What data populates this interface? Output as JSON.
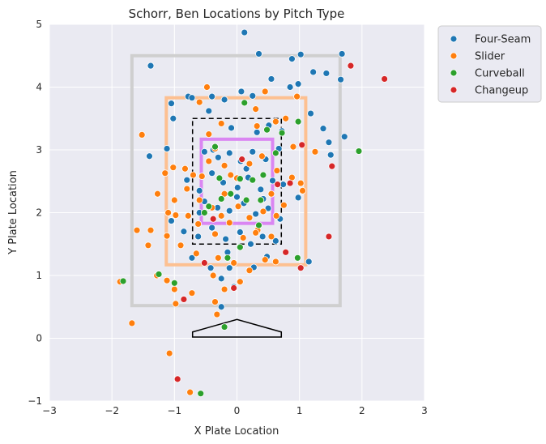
{
  "chart_data": {
    "type": "scatter",
    "title": "Schorr, Ben Locations by Pitch Type",
    "xlabel": "X Plate Location",
    "ylabel": "Y Plate Location",
    "xlim": [
      -3,
      3
    ],
    "ylim": [
      -1,
      5
    ],
    "xticks": [
      "−3",
      "−2",
      "−1",
      "0",
      "1",
      "2",
      "3"
    ],
    "yticks": [
      "−1",
      "0",
      "1",
      "2",
      "3",
      "4",
      "5"
    ],
    "grid": true,
    "legend_position": "outside-top-right",
    "zones": [
      {
        "name": "outer-zone",
        "color": "#cfcfcf",
        "x0": -1.68,
        "x1": 1.65,
        "y0": 0.52,
        "y1": 4.5,
        "style": "solid"
      },
      {
        "name": "slider-zone",
        "color": "#fdc091",
        "x0": -1.13,
        "x1": 1.1,
        "y0": 1.17,
        "y1": 3.83,
        "style": "solid"
      },
      {
        "name": "strike-zone",
        "color": "#000000",
        "x0": -0.71,
        "x1": 0.71,
        "y0": 1.5,
        "y1": 3.5,
        "style": "dashed"
      },
      {
        "name": "heart-zone",
        "color": "#da86f2",
        "x0": -0.57,
        "x1": 0.57,
        "y0": 1.83,
        "y1": 3.17,
        "style": "solid"
      }
    ],
    "home_plate": {
      "x": [
        -0.71,
        -0.71,
        0,
        0.71,
        0.71
      ],
      "y": [
        0.02,
        0.1,
        0.3,
        0.1,
        0.02
      ]
    },
    "series": [
      {
        "name": "Four-Seam",
        "color": "#1f77b4",
        "points": [
          [
            0.12,
            4.87
          ],
          [
            0.35,
            4.53
          ],
          [
            0.88,
            4.45
          ],
          [
            1.02,
            4.52
          ],
          [
            1.22,
            4.24
          ],
          [
            1.43,
            4.22
          ],
          [
            1.68,
            4.53
          ],
          [
            1.66,
            4.12
          ],
          [
            1.72,
            3.21
          ],
          [
            -1.38,
            4.34
          ],
          [
            -1.05,
            3.74
          ],
          [
            -0.78,
            3.85
          ],
          [
            -0.72,
            3.83
          ],
          [
            -0.4,
            3.85
          ],
          [
            -0.2,
            3.8
          ],
          [
            0.07,
            3.93
          ],
          [
            0.25,
            3.86
          ],
          [
            0.55,
            4.13
          ],
          [
            0.85,
            4.0
          ],
          [
            0.98,
            4.05
          ],
          [
            1.18,
            3.58
          ],
          [
            1.38,
            3.34
          ],
          [
            1.47,
            3.12
          ],
          [
            1.5,
            2.92
          ],
          [
            -1.4,
            2.9
          ],
          [
            -1.12,
            3.02
          ],
          [
            -1.02,
            3.5
          ],
          [
            -0.45,
            3.62
          ],
          [
            -0.09,
            3.35
          ],
          [
            0.32,
            3.28
          ],
          [
            0.51,
            3.39
          ],
          [
            0.72,
            3.3
          ],
          [
            -0.52,
            2.97
          ],
          [
            -0.3,
            2.88
          ],
          [
            -0.12,
            2.95
          ],
          [
            0.06,
            2.82
          ],
          [
            0.25,
            2.97
          ],
          [
            0.46,
            2.85
          ],
          [
            0.67,
            3.02
          ],
          [
            -0.8,
            2.52
          ],
          [
            -0.6,
            2.35
          ],
          [
            -0.4,
            2.63
          ],
          [
            -0.22,
            2.48
          ],
          [
            0.01,
            2.4
          ],
          [
            0.18,
            2.56
          ],
          [
            0.38,
            2.37
          ],
          [
            0.57,
            2.51
          ],
          [
            0.74,
            2.45
          ],
          [
            0.98,
            2.24
          ],
          [
            -0.52,
            2.18
          ],
          [
            -0.31,
            2.08
          ],
          [
            -0.12,
            2.03
          ],
          [
            0.11,
            2.15
          ],
          [
            0.3,
            1.98
          ],
          [
            0.5,
            2.07
          ],
          [
            0.69,
            1.9
          ],
          [
            -1.05,
            1.87
          ],
          [
            -0.85,
            1.7
          ],
          [
            -0.62,
            1.62
          ],
          [
            -0.4,
            1.76
          ],
          [
            -0.18,
            1.58
          ],
          [
            0.05,
            1.69
          ],
          [
            0.22,
            1.5
          ],
          [
            0.41,
            1.62
          ],
          [
            0.62,
            1.55
          ],
          [
            -0.72,
            1.28
          ],
          [
            -0.42,
            1.12
          ],
          [
            -0.15,
            1.37
          ],
          [
            0.27,
            1.13
          ],
          [
            0.48,
            1.3
          ],
          [
            1.15,
            1.22
          ],
          [
            -0.25,
            0.95
          ],
          [
            -0.25,
            0.5
          ],
          [
            -0.05,
            0.82
          ],
          [
            -0.6,
            2.0
          ],
          [
            0.0,
            2.25
          ],
          [
            -0.38,
            3.0
          ],
          [
            0.15,
            2.7
          ],
          [
            0.42,
            2.22
          ],
          [
            -0.12,
            1.12
          ]
        ]
      },
      {
        "name": "Slider",
        "color": "#ff7f0e",
        "points": [
          [
            -1.52,
            3.24
          ],
          [
            -0.48,
            4.0
          ],
          [
            -0.6,
            3.76
          ],
          [
            0.45,
            3.93
          ],
          [
            0.96,
            3.85
          ],
          [
            0.78,
            3.5
          ],
          [
            0.62,
            3.45
          ],
          [
            0.32,
            3.38
          ],
          [
            -0.25,
            3.42
          ],
          [
            -1.02,
            2.72
          ],
          [
            -0.83,
            2.7
          ],
          [
            -1.15,
            2.63
          ],
          [
            -1.27,
            2.3
          ],
          [
            -1.0,
            2.2
          ],
          [
            -0.98,
            1.96
          ],
          [
            -0.78,
            1.95
          ],
          [
            -0.56,
            2.58
          ],
          [
            -0.45,
            2.82
          ],
          [
            -0.35,
            3.02
          ],
          [
            -0.2,
            2.75
          ],
          [
            0.0,
            2.55
          ],
          [
            0.2,
            2.78
          ],
          [
            0.4,
            2.9
          ],
          [
            0.64,
            2.67
          ],
          [
            0.88,
            2.56
          ],
          [
            1.02,
            2.47
          ],
          [
            1.05,
            2.35
          ],
          [
            -0.8,
            2.38
          ],
          [
            -0.6,
            2.2
          ],
          [
            -0.4,
            2.08
          ],
          [
            -0.2,
            2.3
          ],
          [
            0.02,
            2.1
          ],
          [
            0.2,
            1.92
          ],
          [
            0.42,
            2.02
          ],
          [
            0.63,
            1.95
          ],
          [
            -0.62,
            1.82
          ],
          [
            -0.35,
            1.66
          ],
          [
            -0.12,
            1.84
          ],
          [
            0.1,
            1.6
          ],
          [
            0.33,
            1.72
          ],
          [
            0.55,
            1.62
          ],
          [
            -1.38,
            1.72
          ],
          [
            -1.12,
            1.63
          ],
          [
            -0.9,
            1.48
          ],
          [
            -0.65,
            1.35
          ],
          [
            -0.3,
            1.28
          ],
          [
            -0.05,
            1.2
          ],
          [
            0.2,
            1.08
          ],
          [
            0.45,
            1.25
          ],
          [
            0.62,
            1.22
          ],
          [
            -1.42,
            1.48
          ],
          [
            -1.6,
            1.72
          ],
          [
            -1.28,
            1.0
          ],
          [
            -1.12,
            0.92
          ],
          [
            -1.0,
            0.78
          ],
          [
            -0.72,
            0.72
          ],
          [
            -0.38,
            1.0
          ],
          [
            -0.2,
            0.78
          ],
          [
            0.05,
            0.9
          ],
          [
            -0.98,
            0.55
          ],
          [
            -0.35,
            0.58
          ],
          [
            -0.32,
            0.38
          ],
          [
            -1.08,
            -0.24
          ],
          [
            -1.87,
            0.9
          ],
          [
            -1.68,
            0.24
          ],
          [
            -0.75,
            -0.86
          ],
          [
            0.3,
            1.68
          ],
          [
            1.25,
            2.97
          ],
          [
            -0.45,
            3.25
          ],
          [
            0.3,
            3.65
          ],
          [
            -0.7,
            2.6
          ],
          [
            -0.1,
            2.6
          ],
          [
            0.55,
            2.3
          ],
          [
            -0.25,
            1.95
          ],
          [
            0.75,
            2.12
          ],
          [
            -1.1,
            2.0
          ],
          [
            0.9,
            3.05
          ]
        ]
      },
      {
        "name": "Curveball",
        "color": "#2ca02c",
        "points": [
          [
            -0.25,
            2.22
          ],
          [
            -0.1,
            2.3
          ],
          [
            0.05,
            2.54
          ],
          [
            0.25,
            2.52
          ],
          [
            0.42,
            2.6
          ],
          [
            0.62,
            2.95
          ],
          [
            0.48,
            3.32
          ],
          [
            -0.28,
            2.55
          ],
          [
            -0.35,
            3.05
          ],
          [
            0.38,
            2.2
          ],
          [
            -0.52,
            2.0
          ],
          [
            0.15,
            2.2
          ],
          [
            0.05,
            1.45
          ],
          [
            -0.15,
            1.28
          ],
          [
            -1.25,
            1.02
          ],
          [
            -1.0,
            0.88
          ],
          [
            -1.82,
            0.91
          ],
          [
            0.98,
            3.45
          ],
          [
            1.95,
            2.98
          ],
          [
            0.97,
            1.28
          ],
          [
            -0.2,
            0.18
          ],
          [
            -0.58,
            -0.88
          ],
          [
            0.12,
            3.75
          ],
          [
            0.72,
            3.27
          ],
          [
            0.35,
            1.8
          ],
          [
            -0.45,
            2.1
          ]
        ]
      },
      {
        "name": "Changeup",
        "color": "#d62728",
        "points": [
          [
            1.82,
            4.34
          ],
          [
            2.36,
            4.13
          ],
          [
            1.04,
            3.08
          ],
          [
            1.52,
            2.74
          ],
          [
            -0.38,
            1.9
          ],
          [
            0.65,
            2.45
          ],
          [
            0.85,
            2.47
          ],
          [
            1.02,
            1.12
          ],
          [
            0.78,
            1.37
          ],
          [
            1.47,
            1.62
          ],
          [
            -0.85,
            0.62
          ],
          [
            -0.05,
            0.8
          ],
          [
            -0.52,
            1.2
          ],
          [
            0.08,
            2.85
          ],
          [
            -0.95,
            -0.65
          ]
        ]
      }
    ]
  }
}
